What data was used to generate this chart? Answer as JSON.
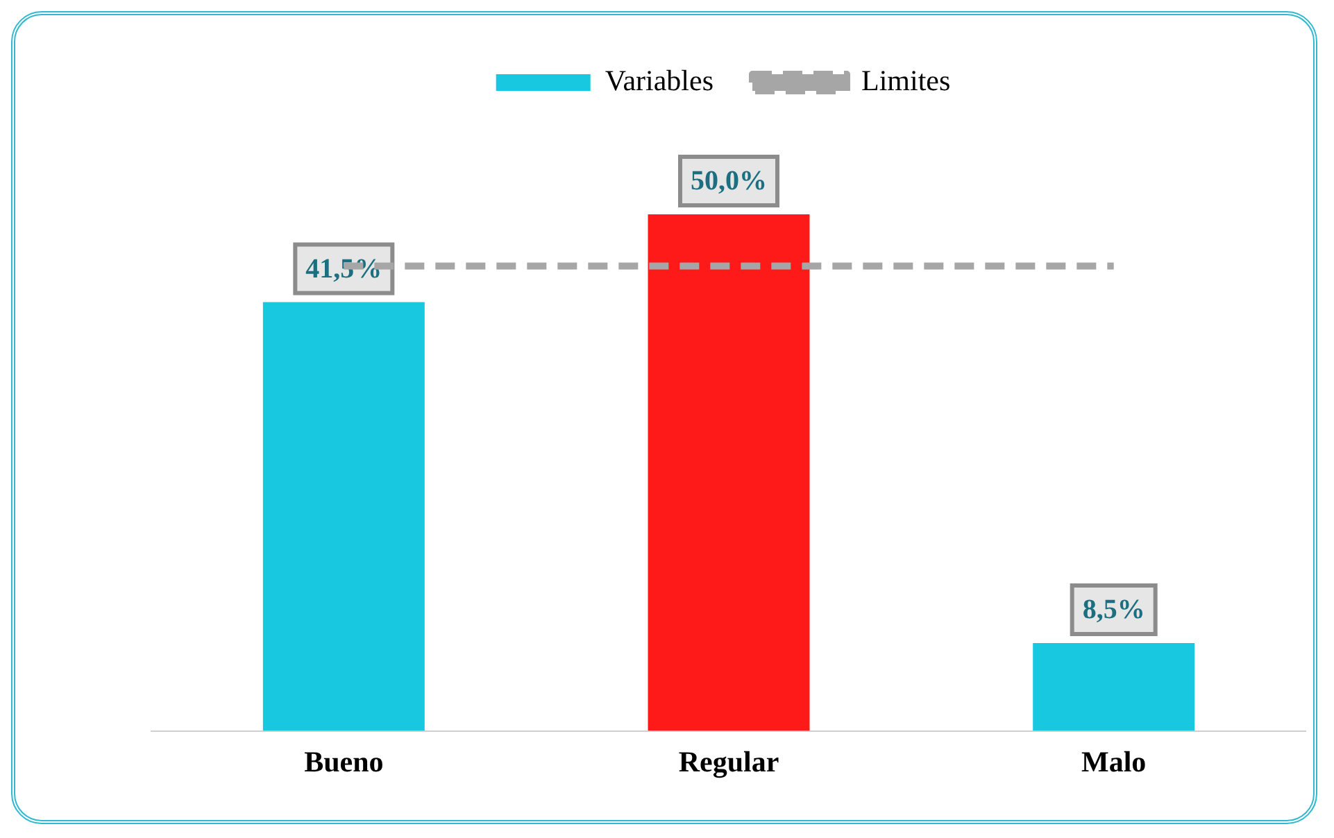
{
  "chart_data": {
    "type": "bar",
    "categories": [
      "Bueno",
      "Regular",
      "Malo"
    ],
    "series": [
      {
        "name": "Variables",
        "color": "#17c8e0",
        "colors": [
          "#17c8e0",
          "#ff1a1a",
          "#17c8e0"
        ],
        "values": [
          41.5,
          50.0,
          8.5
        ],
        "value_labels": [
          "41,5%",
          "50,0%",
          "8,5%"
        ]
      },
      {
        "name": "Limites",
        "type": "line",
        "color": "#a6a6a6",
        "values": [
          45,
          45,
          45
        ],
        "line_style": "dashed",
        "marker": "none"
      }
    ],
    "relative": false,
    "legend": "top",
    "grid": false
  }
}
